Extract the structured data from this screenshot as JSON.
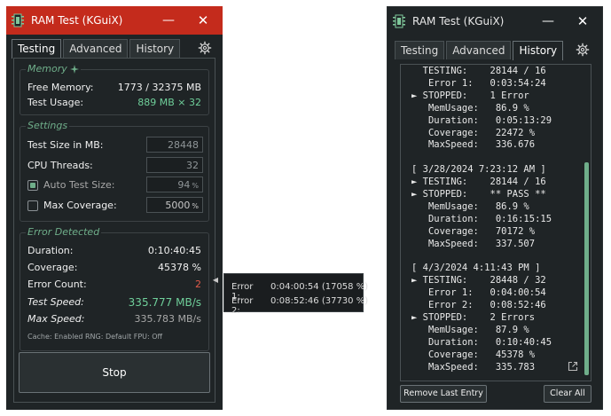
{
  "window_title": "RAM Test (KGuiX)",
  "tabs": [
    "Testing",
    "Advanced",
    "History"
  ],
  "memory": {
    "title": "Memory",
    "free_label": "Free Memory:",
    "free_value": "1773 / 32375 MB",
    "usage_label": "Test Usage:",
    "usage_value": "889 MB × 32"
  },
  "settings": {
    "title": "Settings",
    "test_size_label": "Test Size in MB:",
    "test_size_value": "28448",
    "threads_label": "CPU Threads:",
    "threads_value": "32",
    "auto_label": "Auto Test Size:",
    "auto_value": "94",
    "auto_unit": "%",
    "auto_checked": true,
    "coverage_label": "Max Coverage:",
    "coverage_value": "5000",
    "coverage_unit": "%",
    "coverage_checked": false
  },
  "status": {
    "title": "Error Detected",
    "duration_label": "Duration:",
    "duration_value": "0:10:40:45",
    "coverage_label": "Coverage:",
    "coverage_value": "45378 %",
    "errors_label": "Error Count:",
    "errors_value": "2",
    "speed_label": "Test Speed:",
    "speed_value": "335.777 MB/s",
    "maxspeed_label": "Max Speed:",
    "maxspeed_value": "335.783 MB/s",
    "footer": "Cache: Enabled  RNG: Default  FPU: Off"
  },
  "stop_label": "Stop",
  "error_popup": [
    {
      "label": "Error 1:",
      "value": "0:04:00:54 (17058 %)"
    },
    {
      "label": "Error 2:",
      "value": "0:08:52:46 (37730 %)"
    }
  ],
  "history_lines": [
    "  TESTING:    28144 / 16",
    "   Error 1:   0:03:54:24",
    "► STOPPED:    1 Error",
    "   MemUsage:   86.9 %",
    "   Duration:   0:05:13:29",
    "   Coverage:   22472 %",
    "   MaxSpeed:   336.676",
    "",
    "[ 3/28/2024 7:23:12 AM ]",
    "► TESTING:    28144 / 16",
    "► STOPPED:    ** PASS **",
    "   MemUsage:   86.9 %",
    "   Duration:   0:16:15:15",
    "   Coverage:   70172 %",
    "   MaxSpeed:   337.507",
    "",
    "[ 4/3/2024 4:11:43 PM ]",
    "► TESTING:    28448 / 32",
    "   Error 1:   0:04:00:54",
    "   Error 2:   0:08:52:46",
    "► STOPPED:    2 Errors",
    "   MemUsage:   87.9 %",
    "   Duration:   0:10:40:45",
    "   Coverage:   45378 %",
    "   MaxSpeed:   335.783"
  ],
  "history_buttons": {
    "remove": "Remove Last Entry",
    "clear": "Clear All"
  },
  "colors": {
    "accent": "#6fae8a",
    "titlebar_active": "#c42b1c",
    "error": "#e05a4a"
  },
  "icons": [
    "app-icon",
    "minimize-icon",
    "close-icon",
    "gear-icon",
    "sparkle-icon",
    "collapse-arrow-icon",
    "external-link-icon"
  ]
}
